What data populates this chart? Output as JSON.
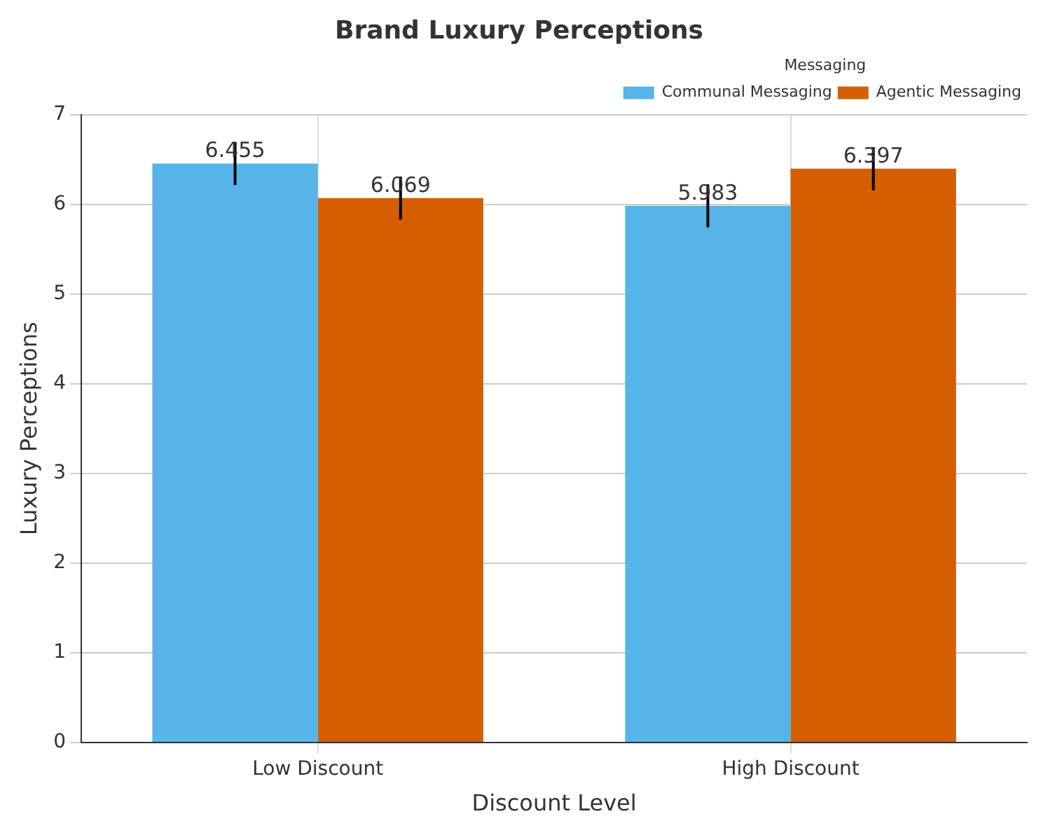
{
  "chart_data": {
    "type": "bar",
    "title": "Brand Luxury Perceptions",
    "xlabel": "Discount Level",
    "ylabel": "Luxury Perceptions",
    "legend_title": "Messaging",
    "categories": [
      "Low Discount",
      "High Discount"
    ],
    "series": [
      {
        "name": "Communal Messaging",
        "color": "#56b4e9",
        "values": [
          6.455,
          5.983
        ],
        "errors": [
          0.24,
          0.24
        ]
      },
      {
        "name": "Agentic Messaging",
        "color": "#d55e00",
        "values": [
          6.069,
          6.397
        ],
        "errors": [
          0.24,
          0.24
        ]
      }
    ],
    "ylim": [
      0,
      7
    ],
    "yticks": [
      0,
      1,
      2,
      3,
      4,
      5,
      6,
      7
    ],
    "grid": true,
    "legend": "top right",
    "data_labels": true
  }
}
